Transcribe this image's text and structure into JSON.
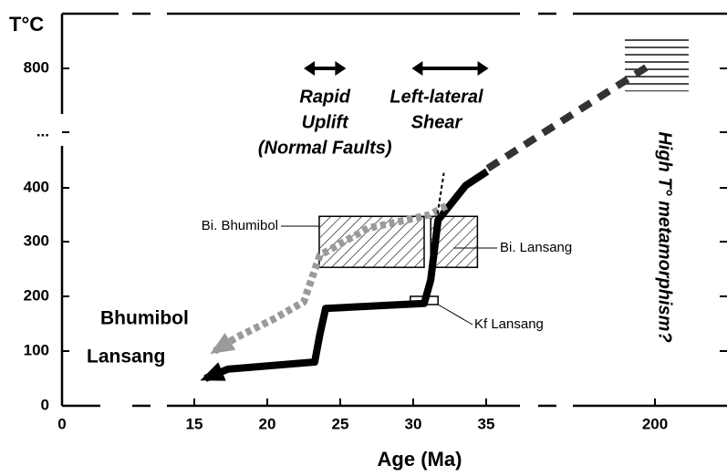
{
  "chart_data": {
    "type": "line",
    "ylabel": "T°C",
    "xlabel": "Age (Ma)",
    "xticks": [
      0,
      15,
      20,
      25,
      30,
      35,
      200
    ],
    "yticks": [
      0,
      100,
      200,
      300,
      400,
      {
        "value": null,
        "label": "..."
      },
      800
    ],
    "series": [
      {
        "name": "Lansang",
        "color": "#000000",
        "linestyle": "solid",
        "linewidth": 8,
        "arrow": true,
        "x": [
          15.75,
          17.3,
          23.25,
          23.6,
          24.0,
          30.75,
          31.2,
          31.7,
          33.6,
          35.9
        ],
        "values": [
          50,
          67,
          80,
          130,
          178,
          187,
          230,
          340,
          408,
          455
        ]
      },
      {
        "color": "#333333",
        "linestyle": "dashed",
        "linewidth": 8,
        "x": [
          36.5,
          121,
          197
        ],
        "values": [
          465,
          650,
          815
        ]
      },
      {
        "name": "Bhumibol",
        "color": "#9a9a9a",
        "linestyle": "dotted",
        "linewidth": 8,
        "arrow": true,
        "x": [
          16.4,
          17.9,
          20.4,
          22.5,
          23.6,
          26.9,
          29.5,
          31.1,
          32.3
        ],
        "values": [
          100,
          125,
          158,
          190,
          275,
          325,
          340,
          350,
          367
        ]
      },
      {
        "color": "#000000",
        "linestyle": "dotted",
        "linewidth": 2,
        "x": [
          31.6,
          32.1
        ],
        "values": [
          340,
          450
        ]
      }
    ],
    "boxes": [
      {
        "label": "Bi. Bhumibol",
        "x": [
          23.56,
          30.75
        ],
        "y": [
          253,
          347
        ],
        "fill": "hatch"
      },
      {
        "label": "Bi. Lansang",
        "x": [
          31.2,
          34.4
        ],
        "y": [
          253,
          347
        ],
        "fill": "hatch"
      },
      {
        "label": "Kf Lansang",
        "x": [
          29.8,
          31.7
        ],
        "y": [
          185,
          200
        ],
        "fill": "none"
      },
      {
        "x": [
          170.6,
          233
        ],
        "y": [
          723,
          900
        ],
        "fill": "lines"
      }
    ],
    "annotations": [
      {
        "text": [
          "Rapid",
          "Uplift",
          "(Normal Faults)"
        ],
        "arrow_x": [
          22.5,
          25.4
        ],
        "arrow_y": 800
      },
      {
        "text": [
          "Left-lateral",
          "Shear"
        ],
        "arrow_x": [
          29.9,
          37.3
        ],
        "arrow_y": 800
      },
      {
        "text": [
          "High T° metamorphism?"
        ]
      }
    ]
  }
}
